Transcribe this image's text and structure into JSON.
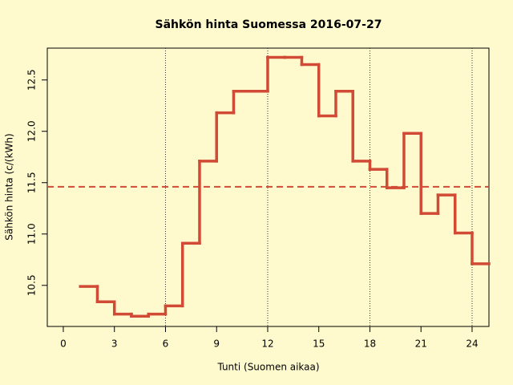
{
  "chart_data": {
    "type": "step",
    "title": "Sähkön hinta Suomessa 2016-07-27",
    "x_label": "Tunti (Suomen aikaa)",
    "y_label": "Sähkön hinta (c/(kWh)",
    "x": [
      1,
      2,
      3,
      4,
      5,
      6,
      7,
      8,
      9,
      10,
      11,
      12,
      13,
      14,
      15,
      16,
      17,
      18,
      19,
      20,
      21,
      22,
      23,
      24
    ],
    "values": [
      10.49,
      10.34,
      10.22,
      10.2,
      10.22,
      10.3,
      10.91,
      11.71,
      12.18,
      12.39,
      12.39,
      12.72,
      12.72,
      12.65,
      12.15,
      12.39,
      11.71,
      11.63,
      11.45,
      11.98,
      11.2,
      11.38,
      11.01,
      10.71
    ],
    "color": "#d14a35",
    "mean_line": 11.46,
    "vlines": [
      6,
      12,
      18,
      24
    ],
    "xlim": [
      -0.94,
      24.99
    ],
    "ylim": [
      10.1,
      12.81
    ],
    "xticks": [
      0,
      3,
      6,
      9,
      12,
      15,
      18,
      21,
      24
    ],
    "yticks": [
      10.5,
      {
        "value": 11.0,
        "label": "11.0"
      },
      11.5,
      {
        "value": 12.0,
        "label": "12.0"
      },
      12.5
    ]
  }
}
